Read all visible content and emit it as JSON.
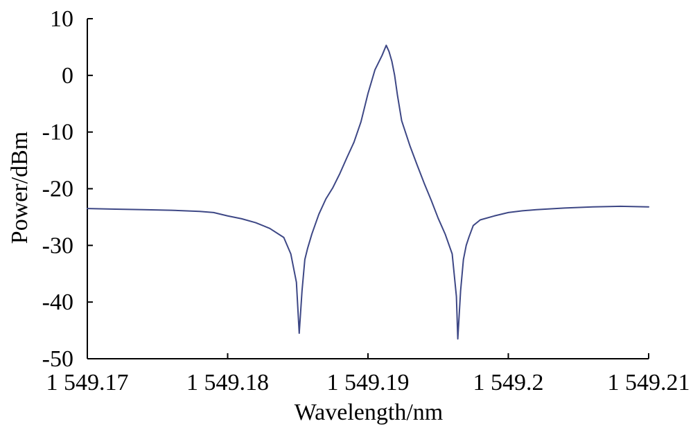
{
  "chart_data": {
    "type": "line",
    "title": "",
    "xlabel": "Wavelength/nm",
    "ylabel": "Power/dBm",
    "xlim": [
      1549.17,
      1549.21
    ],
    "ylim": [
      -50,
      10
    ],
    "x_ticks": [
      1549.17,
      1549.18,
      1549.19,
      1549.2,
      1549.21
    ],
    "x_tick_labels": [
      "1 549.17",
      "1 549.18",
      "1 549.19",
      "1 549.2",
      "1 549.21"
    ],
    "y_ticks": [
      10,
      0,
      -10,
      -20,
      -30,
      -40,
      -50
    ],
    "y_tick_labels": [
      "10",
      "0",
      "-10",
      "-20",
      "-30",
      "-40",
      "-50"
    ],
    "grid": false,
    "legend": "none",
    "series": [
      {
        "color": "#3d4785",
        "x": [
          1549.17,
          1549.172,
          1549.174,
          1549.176,
          1549.178,
          1549.179,
          1549.18,
          1549.181,
          1549.182,
          1549.183,
          1549.184,
          1549.1845,
          1549.1849,
          1549.1851,
          1549.1853,
          1549.1855,
          1549.1857,
          1549.186,
          1549.1865,
          1549.187,
          1549.1875,
          1549.188,
          1549.1885,
          1549.189,
          1549.1895,
          1549.19,
          1549.1905,
          1549.191,
          1549.1913,
          1549.1915,
          1549.1917,
          1549.1919,
          1549.1921,
          1549.1924,
          1549.193,
          1549.1935,
          1549.194,
          1549.1945,
          1549.195,
          1549.1955,
          1549.196,
          1549.1963,
          1549.1964,
          1549.1966,
          1549.1968,
          1549.197,
          1549.1972,
          1549.1975,
          1549.198,
          1549.199,
          1549.2,
          1549.201,
          1549.202,
          1549.204,
          1549.206,
          1549.208,
          1549.21
        ],
        "y": [
          -23.5,
          -23.6,
          -23.7,
          -23.8,
          -24.0,
          -24.2,
          -24.8,
          -25.3,
          -26.0,
          -27.0,
          -28.6,
          -31.5,
          -36.5,
          -45.5,
          -38.0,
          -32.5,
          -30.5,
          -28.0,
          -24.5,
          -21.8,
          -19.8,
          -17.3,
          -14.5,
          -11.8,
          -8.2,
          -3.2,
          1.0,
          3.5,
          5.3,
          4.2,
          2.5,
          0.0,
          -3.5,
          -8.0,
          -12.5,
          -15.8,
          -19.0,
          -22.0,
          -25.2,
          -28.0,
          -31.5,
          -39.0,
          -46.5,
          -38.0,
          -32.5,
          -30.0,
          -28.5,
          -26.5,
          -25.5,
          -24.8,
          -24.2,
          -23.9,
          -23.7,
          -23.4,
          -23.2,
          -23.1,
          -23.2
        ]
      }
    ]
  }
}
